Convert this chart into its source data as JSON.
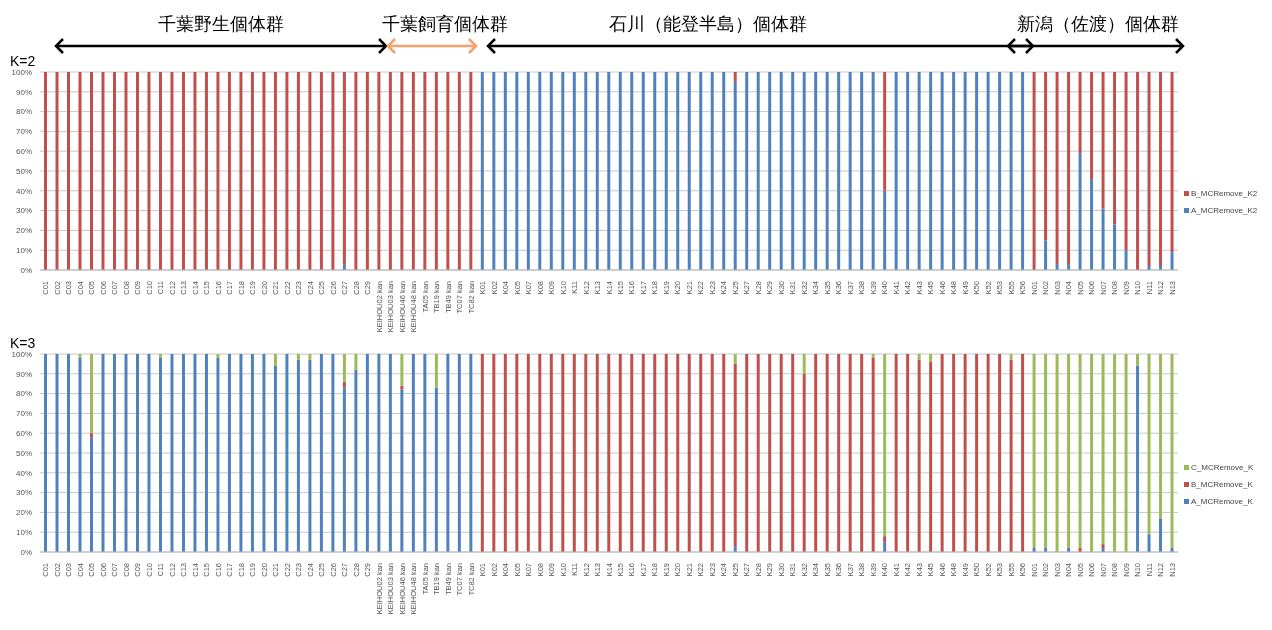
{
  "chart_data": [
    {
      "type": "bar",
      "title": "K=2",
      "stacked": true,
      "grid": "y",
      "legend": "right",
      "annotations": [
        "千葉野生個体群",
        "千葉飼育個体群",
        "石川（能登半島）個体群",
        "新潟（佐渡）個体群"
      ],
      "categories": [
        "C01",
        "C02",
        "C03",
        "C04",
        "C05",
        "C06",
        "C07",
        "C08",
        "C09",
        "C10",
        "C11",
        "C12",
        "C13",
        "C14",
        "C15",
        "C16",
        "C17",
        "C18",
        "C19",
        "C20",
        "C21",
        "C22",
        "C23",
        "C24",
        "C25",
        "C26",
        "C27",
        "C28",
        "C29",
        "KEIHOU02 kan",
        "KEIHOU03 kan",
        "KEIHOU46 kan",
        "KEIHOU48 kan",
        "TA05 kan",
        "TB19 kan",
        "TB49 kan",
        "TC07 kan",
        "TC82 kan",
        "K01",
        "K02",
        "K04",
        "K05",
        "K07",
        "K08",
        "K09",
        "K10",
        "K11",
        "K12",
        "K13",
        "K14",
        "K15",
        "K16",
        "K17",
        "K18",
        "K19",
        "K20",
        "K21",
        "K22",
        "K23",
        "K24",
        "K25",
        "K27",
        "K28",
        "K29",
        "K30",
        "K31",
        "K32",
        "K34",
        "K35",
        "K36",
        "K37",
        "K38",
        "K39",
        "K40",
        "K41",
        "K42",
        "K43",
        "K45",
        "K46",
        "K48",
        "K49",
        "K50",
        "K52",
        "K53",
        "K55",
        "K56",
        "N01",
        "N02",
        "N03",
        "N04",
        "N05",
        "N06",
        "N07",
        "N08",
        "N09",
        "N10",
        "N11",
        "N12",
        "N13"
      ],
      "ylim": [
        0,
        100
      ],
      "yticks": [
        {
          "value": 0,
          "label": "0%"
        },
        {
          "value": 10,
          "label": "10%"
        },
        {
          "value": 20,
          "label": "20%"
        },
        {
          "value": 30,
          "label": "30%"
        },
        {
          "value": 40,
          "label": "40%"
        },
        {
          "value": 50,
          "label": "50%"
        },
        {
          "value": 60,
          "label": "60%"
        },
        {
          "value": 70,
          "label": "70%"
        },
        {
          "value": 80,
          "label": "80%"
        },
        {
          "value": 90,
          "label": "90%"
        },
        {
          "value": 100,
          "label": "100%"
        }
      ],
      "series": [
        {
          "name": "A_MCRemove_K2",
          "color": "#4f81bd",
          "values": [
            0,
            0,
            0,
            0,
            0,
            0,
            0,
            0,
            0,
            0,
            0,
            0,
            0,
            0,
            0,
            0,
            0,
            0,
            0,
            0,
            0,
            0,
            0,
            0,
            0,
            0,
            3,
            0,
            0,
            0,
            0,
            0,
            0,
            0,
            0,
            0,
            0,
            0,
            100,
            100,
            100,
            100,
            100,
            100,
            100,
            100,
            100,
            100,
            100,
            100,
            100,
            100,
            100,
            100,
            100,
            100,
            100,
            100,
            100,
            100,
            95,
            100,
            100,
            100,
            100,
            100,
            100,
            100,
            100,
            100,
            100,
            100,
            100,
            40,
            100,
            100,
            100,
            100,
            100,
            100,
            100,
            100,
            100,
            100,
            100,
            100,
            0,
            15,
            3,
            3,
            59,
            46,
            31,
            23,
            10,
            0,
            2,
            2,
            9
          ]
        },
        {
          "name": "B_MCRemove_K2",
          "color": "#c0504d",
          "values": [
            100,
            100,
            100,
            100,
            100,
            100,
            100,
            100,
            100,
            100,
            100,
            100,
            100,
            100,
            100,
            100,
            100,
            100,
            100,
            100,
            100,
            100,
            100,
            100,
            100,
            100,
            97,
            100,
            100,
            100,
            100,
            100,
            100,
            100,
            100,
            100,
            100,
            100,
            0,
            0,
            0,
            0,
            0,
            0,
            0,
            0,
            0,
            0,
            0,
            0,
            0,
            0,
            0,
            0,
            0,
            0,
            0,
            0,
            0,
            0,
            5,
            0,
            0,
            0,
            0,
            0,
            0,
            0,
            0,
            0,
            0,
            0,
            0,
            60,
            0,
            0,
            0,
            0,
            0,
            0,
            0,
            0,
            0,
            0,
            0,
            0,
            100,
            85,
            97,
            97,
            41,
            54,
            69,
            77,
            90,
            100,
            98,
            98,
            91
          ]
        }
      ]
    },
    {
      "type": "bar",
      "title": "K=3",
      "stacked": true,
      "grid": "y",
      "legend": "right",
      "categories": [
        "C01",
        "C02",
        "C03",
        "C04",
        "C05",
        "C06",
        "C07",
        "C08",
        "C09",
        "C10",
        "C11",
        "C12",
        "C13",
        "C14",
        "C15",
        "C16",
        "C17",
        "C18",
        "C19",
        "C20",
        "C21",
        "C22",
        "C23",
        "C24",
        "C25",
        "C26",
        "C27",
        "C28",
        "C29",
        "KEIHOU02 kan",
        "KEIHOU03 kan",
        "KEIHOU46 kan",
        "KEIHOU48 kan",
        "TA05 kan",
        "TB19 kan",
        "TB49 kan",
        "TC07 kan",
        "TC82 kan",
        "K01",
        "K02",
        "K04",
        "K05",
        "K07",
        "K08",
        "K09",
        "K10",
        "K11",
        "K12",
        "K13",
        "K14",
        "K15",
        "K16",
        "K17",
        "K18",
        "K19",
        "K20",
        "K21",
        "K22",
        "K23",
        "K24",
        "K25",
        "K27",
        "K28",
        "K29",
        "K30",
        "K31",
        "K32",
        "K34",
        "K35",
        "K36",
        "K37",
        "K38",
        "K39",
        "K40",
        "K41",
        "K42",
        "K43",
        "K45",
        "K46",
        "K48",
        "K49",
        "K50",
        "K52",
        "K53",
        "K55",
        "K56",
        "N01",
        "N02",
        "N03",
        "N04",
        "N05",
        "N06",
        "N07",
        "N08",
        "N09",
        "N10",
        "N11",
        "N12",
        "N13"
      ],
      "ylim": [
        0,
        100
      ],
      "yticks": [
        {
          "value": 0,
          "label": "0%"
        },
        {
          "value": 10,
          "label": "10%"
        },
        {
          "value": 20,
          "label": "20%"
        },
        {
          "value": 30,
          "label": "30%"
        },
        {
          "value": 40,
          "label": "40%"
        },
        {
          "value": 50,
          "label": "50%"
        },
        {
          "value": 60,
          "label": "60%"
        },
        {
          "value": 70,
          "label": "70%"
        },
        {
          "value": 80,
          "label": "80%"
        },
        {
          "value": 90,
          "label": "90%"
        },
        {
          "value": 100,
          "label": "100%"
        }
      ],
      "series": [
        {
          "name": "A_MCRemove_K",
          "color": "#4f81bd",
          "values": [
            100,
            100,
            100,
            98,
            58,
            100,
            100,
            100,
            100,
            100,
            98,
            100,
            100,
            100,
            100,
            98,
            100,
            100,
            100,
            100,
            94,
            100,
            97,
            97,
            100,
            100,
            83,
            92,
            100,
            100,
            100,
            82,
            100,
            100,
            83,
            100,
            100,
            100,
            0,
            0,
            0,
            0,
            0,
            0,
            0,
            0,
            0,
            0,
            0,
            0,
            0,
            0,
            0,
            0,
            0,
            0,
            0,
            0,
            0,
            0,
            3,
            0,
            0,
            0,
            0,
            0,
            0,
            0,
            0,
            0,
            0,
            0,
            0,
            5,
            0,
            0,
            0,
            0,
            0,
            0,
            0,
            0,
            0,
            0,
            0,
            0,
            2,
            2,
            0,
            2,
            0,
            0,
            2,
            0,
            0,
            94,
            9,
            17,
            2
          ]
        },
        {
          "name": "B_MCRemove_K",
          "color": "#c0504d",
          "values": [
            0,
            0,
            0,
            0,
            2,
            0,
            0,
            0,
            0,
            0,
            0,
            0,
            0,
            0,
            0,
            0,
            0,
            0,
            0,
            0,
            0,
            0,
            0,
            0,
            0,
            0,
            3,
            0,
            0,
            0,
            0,
            2,
            0,
            0,
            0,
            0,
            0,
            0,
            100,
            100,
            100,
            100,
            100,
            100,
            100,
            100,
            100,
            100,
            100,
            100,
            100,
            100,
            100,
            100,
            100,
            100,
            100,
            100,
            100,
            100,
            92,
            100,
            100,
            100,
            100,
            100,
            90,
            100,
            100,
            100,
            100,
            100,
            98,
            3,
            100,
            100,
            97,
            96,
            100,
            100,
            100,
            100,
            100,
            100,
            97,
            100,
            0,
            0,
            0,
            0,
            2,
            0,
            2,
            0,
            0,
            0,
            0,
            0,
            0
          ]
        },
        {
          "name": "C_MCRemove_K",
          "color": "#9bbb59",
          "values": [
            0,
            0,
            0,
            2,
            40,
            0,
            0,
            0,
            0,
            0,
            2,
            0,
            0,
            0,
            0,
            2,
            0,
            0,
            0,
            0,
            6,
            0,
            3,
            3,
            0,
            0,
            14,
            8,
            0,
            0,
            0,
            16,
            0,
            0,
            17,
            0,
            0,
            0,
            0,
            0,
            0,
            0,
            0,
            0,
            0,
            0,
            0,
            0,
            0,
            0,
            0,
            0,
            0,
            0,
            0,
            0,
            0,
            0,
            0,
            0,
            5,
            0,
            0,
            0,
            0,
            0,
            10,
            0,
            0,
            0,
            0,
            0,
            2,
            92,
            0,
            0,
            3,
            4,
            0,
            0,
            0,
            0,
            0,
            0,
            3,
            0,
            98,
            98,
            100,
            98,
            98,
            100,
            96,
            100,
            100,
            6,
            91,
            83,
            98
          ]
        }
      ]
    }
  ]
}
